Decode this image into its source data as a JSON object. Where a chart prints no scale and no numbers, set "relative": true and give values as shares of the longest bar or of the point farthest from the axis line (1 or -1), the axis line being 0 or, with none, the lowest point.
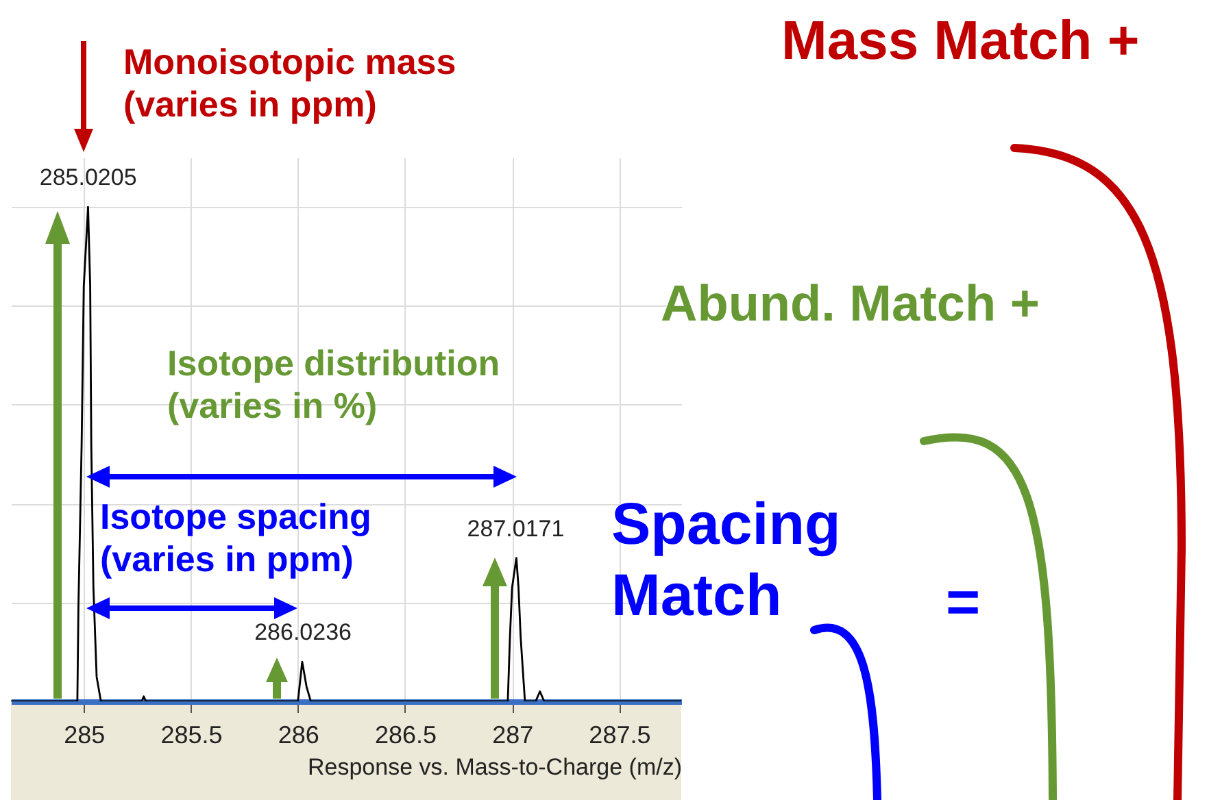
{
  "chart_data": {
    "type": "line",
    "relative": true,
    "xlabel": "Response vs. Mass-to-Charge (m/z)",
    "x": [
      284.66,
      284.97,
      284.975,
      284.99,
      285.0,
      285.02,
      285.03,
      285.035,
      285.045,
      285.06,
      285.08,
      285.27,
      285.28,
      285.29,
      286.0,
      286.02,
      286.04,
      286.06,
      286.98,
      286.99,
      287.0,
      287.02,
      287.03,
      287.04,
      287.06,
      287.11,
      287.13,
      287.15,
      287.79
    ],
    "series": [
      {
        "color": "#000000",
        "values": [
          0,
          0,
          0.19,
          0.52,
          0.84,
          1,
          0.84,
          0.52,
          0.23,
          0.05,
          0,
          0,
          0.01,
          0,
          0,
          0.08,
          0.03,
          0,
          0,
          0.13,
          0.23,
          0.29,
          0.23,
          0.13,
          0,
          0,
          0.02,
          0,
          0
        ]
      }
    ],
    "xlim": [
      284.66,
      287.79
    ],
    "xticks": [
      285,
      285.5,
      286,
      286.5,
      287,
      287.5
    ],
    "grid": true,
    "tick_labels": "x",
    "annotations": [
      {
        "text": "285.0205",
        "x": 285.0205,
        "y": 1
      },
      {
        "text": "286.0236",
        "x": 286.0236,
        "y": 0.08
      },
      {
        "text": "287.0171",
        "x": 287.0171,
        "y": 0.29
      },
      "Monoisotopic mass\n(varies in ppm)",
      "Isotope distribution\n(varies in %)",
      "Isotope spacing\n(varies in ppm)",
      "Mass Match +",
      "Abund. Match +",
      "Spacing\nMatch",
      "="
    ]
  }
}
